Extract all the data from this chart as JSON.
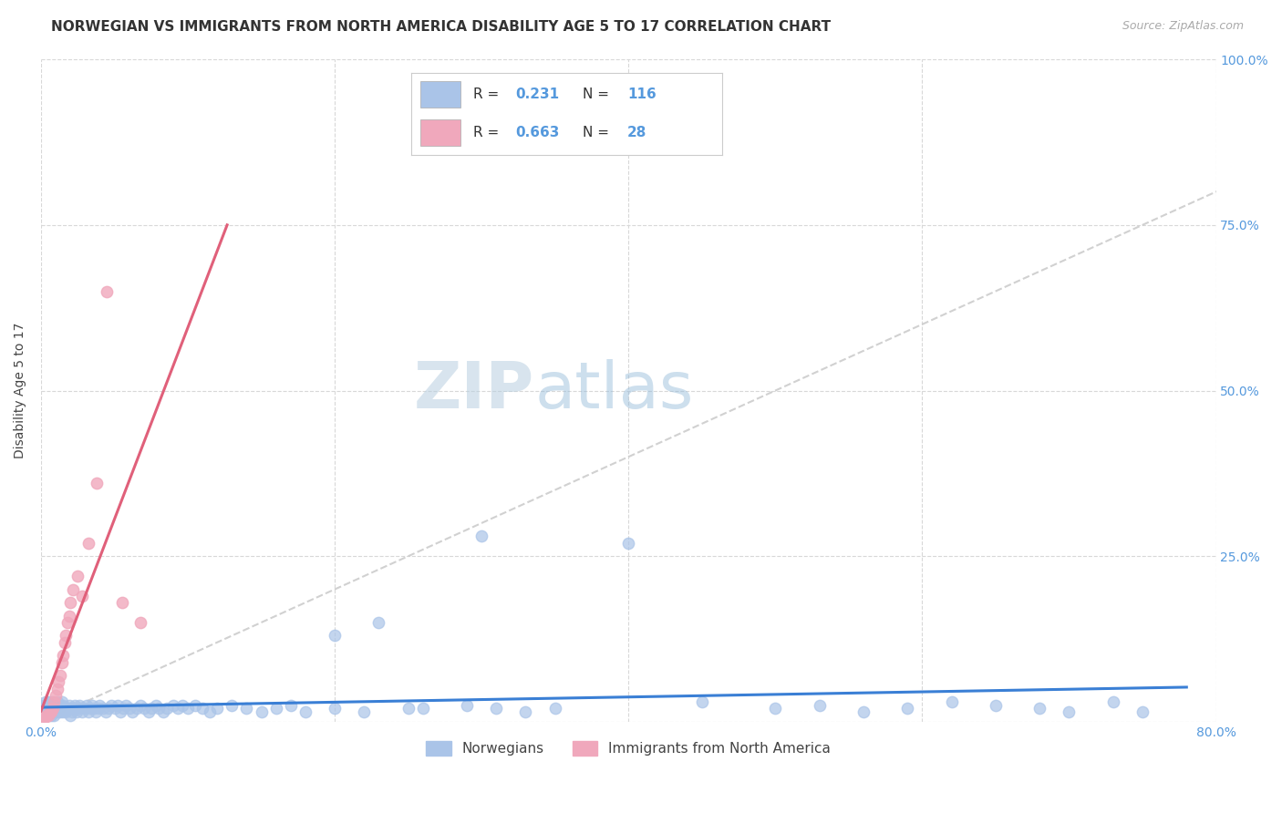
{
  "title": "NORWEGIAN VS IMMIGRANTS FROM NORTH AMERICA DISABILITY AGE 5 TO 17 CORRELATION CHART",
  "source": "Source: ZipAtlas.com",
  "ylabel": "Disability Age 5 to 17",
  "xmin": 0.0,
  "xmax": 0.8,
  "ymin": 0.0,
  "ymax": 1.0,
  "background_color": "#ffffff",
  "grid_color": "#d8d8d8",
  "diagonal_line_color": "#cccccc",
  "norwegian_color": "#aac4e8",
  "norwegian_line_color": "#3a7fd5",
  "immigrant_color": "#f0a8bc",
  "immigrant_line_color": "#e0607a",
  "R_norwegian": 0.231,
  "N_norwegian": 116,
  "R_immigrant": 0.663,
  "N_immigrant": 28,
  "watermark_zip": "ZIP",
  "watermark_atlas": "atlas",
  "title_fontsize": 11,
  "tick_color": "#5599dd",
  "tick_fontsize": 10,
  "ylabel_fontsize": 10,
  "source_color": "#aaaaaa",
  "nor_x": [
    0.001,
    0.001,
    0.002,
    0.002,
    0.002,
    0.003,
    0.003,
    0.003,
    0.004,
    0.004,
    0.004,
    0.005,
    0.005,
    0.005,
    0.006,
    0.006,
    0.006,
    0.007,
    0.007,
    0.007,
    0.008,
    0.008,
    0.009,
    0.009,
    0.01,
    0.01,
    0.011,
    0.011,
    0.012,
    0.012,
    0.013,
    0.013,
    0.014,
    0.014,
    0.015,
    0.015,
    0.016,
    0.017,
    0.018,
    0.019,
    0.02,
    0.02,
    0.021,
    0.022,
    0.023,
    0.024,
    0.025,
    0.026,
    0.027,
    0.028,
    0.03,
    0.031,
    0.032,
    0.033,
    0.035,
    0.036,
    0.037,
    0.039,
    0.04,
    0.042,
    0.044,
    0.046,
    0.048,
    0.05,
    0.052,
    0.054,
    0.056,
    0.058,
    0.06,
    0.062,
    0.065,
    0.068,
    0.07,
    0.073,
    0.075,
    0.078,
    0.08,
    0.083,
    0.086,
    0.09,
    0.093,
    0.096,
    0.1,
    0.105,
    0.11,
    0.115,
    0.12,
    0.13,
    0.14,
    0.15,
    0.16,
    0.17,
    0.18,
    0.2,
    0.22,
    0.25,
    0.3,
    0.35,
    0.4,
    0.45,
    0.5,
    0.53,
    0.56,
    0.59,
    0.62,
    0.65,
    0.68,
    0.7,
    0.73,
    0.75,
    0.2,
    0.23,
    0.26,
    0.29,
    0.31,
    0.33
  ],
  "nor_y": [
    0.01,
    0.02,
    0.015,
    0.02,
    0.025,
    0.01,
    0.02,
    0.03,
    0.015,
    0.02,
    0.025,
    0.01,
    0.02,
    0.03,
    0.015,
    0.02,
    0.025,
    0.01,
    0.02,
    0.03,
    0.015,
    0.025,
    0.02,
    0.01,
    0.015,
    0.025,
    0.02,
    0.03,
    0.015,
    0.02,
    0.025,
    0.015,
    0.02,
    0.03,
    0.015,
    0.025,
    0.02,
    0.015,
    0.02,
    0.025,
    0.01,
    0.02,
    0.015,
    0.02,
    0.025,
    0.015,
    0.02,
    0.025,
    0.02,
    0.015,
    0.02,
    0.025,
    0.015,
    0.02,
    0.025,
    0.02,
    0.015,
    0.02,
    0.025,
    0.02,
    0.015,
    0.02,
    0.025,
    0.02,
    0.025,
    0.015,
    0.02,
    0.025,
    0.02,
    0.015,
    0.02,
    0.025,
    0.02,
    0.015,
    0.02,
    0.025,
    0.02,
    0.015,
    0.02,
    0.025,
    0.02,
    0.025,
    0.02,
    0.025,
    0.02,
    0.015,
    0.02,
    0.025,
    0.02,
    0.015,
    0.02,
    0.025,
    0.015,
    0.02,
    0.015,
    0.02,
    0.28,
    0.02,
    0.27,
    0.03,
    0.02,
    0.025,
    0.015,
    0.02,
    0.03,
    0.025,
    0.02,
    0.015,
    0.03,
    0.015,
    0.13,
    0.15,
    0.02,
    0.025,
    0.02,
    0.015
  ],
  "imm_x": [
    0.001,
    0.002,
    0.003,
    0.004,
    0.005,
    0.006,
    0.007,
    0.008,
    0.009,
    0.01,
    0.011,
    0.012,
    0.013,
    0.014,
    0.015,
    0.016,
    0.017,
    0.018,
    0.019,
    0.02,
    0.022,
    0.025,
    0.028,
    0.032,
    0.038,
    0.045,
    0.055,
    0.068
  ],
  "imm_y": [
    0.005,
    0.005,
    0.008,
    0.01,
    0.01,
    0.015,
    0.015,
    0.02,
    0.03,
    0.04,
    0.05,
    0.06,
    0.07,
    0.09,
    0.1,
    0.12,
    0.13,
    0.15,
    0.16,
    0.18,
    0.2,
    0.22,
    0.19,
    0.27,
    0.36,
    0.65,
    0.18,
    0.15
  ]
}
